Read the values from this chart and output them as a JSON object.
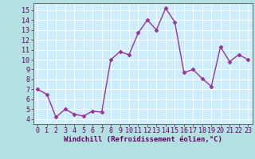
{
  "x": [
    0,
    1,
    2,
    3,
    4,
    5,
    6,
    7,
    8,
    9,
    10,
    11,
    12,
    13,
    14,
    15,
    16,
    17,
    18,
    19,
    20,
    21,
    22,
    23
  ],
  "y": [
    7.0,
    6.5,
    4.2,
    5.0,
    4.5,
    4.3,
    4.8,
    4.7,
    10.0,
    10.8,
    10.5,
    12.7,
    14.0,
    13.0,
    15.2,
    13.8,
    8.7,
    9.0,
    8.1,
    7.3,
    11.3,
    9.8,
    10.5,
    10.0
  ],
  "color": "#993399",
  "bg_color": "#b3e0e0",
  "plot_bg_color": "#cceeff",
  "grid_color": "#ffffff",
  "xlabel": "Windchill (Refroidissement éolien,°C)",
  "ylim": [
    3.5,
    15.7
  ],
  "yticks": [
    4,
    5,
    6,
    7,
    8,
    9,
    10,
    11,
    12,
    13,
    14,
    15
  ],
  "xlim": [
    -0.5,
    23.5
  ],
  "xticks": [
    0,
    1,
    2,
    3,
    4,
    5,
    6,
    7,
    8,
    9,
    10,
    11,
    12,
    13,
    14,
    15,
    16,
    17,
    18,
    19,
    20,
    21,
    22,
    23
  ],
  "xlabel_fontsize": 6.5,
  "tick_fontsize": 6.0,
  "marker": "D",
  "marker_size": 2.5,
  "linewidth": 1.0
}
